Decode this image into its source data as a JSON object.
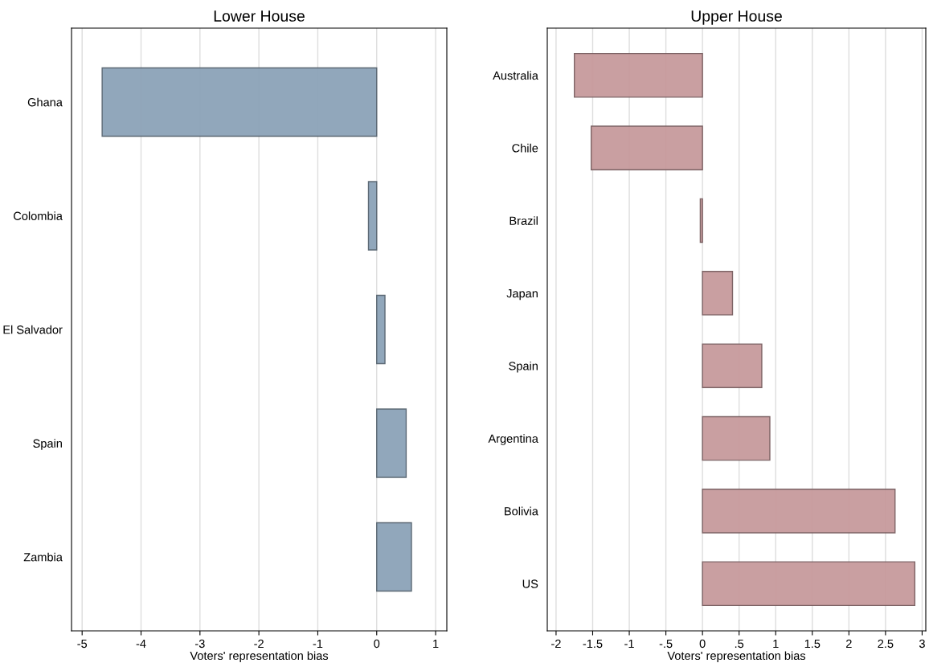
{
  "chart_data": [
    {
      "type": "bar",
      "orientation": "horizontal",
      "title": "Lower House",
      "xlabel": "Voters' representation bias",
      "categories": [
        "Ghana",
        "Colombia",
        "El Salvador",
        "Spain",
        "Zambia"
      ],
      "series": [
        {
          "color": "#8ca3b8",
          "values": [
            -4.66,
            -0.14,
            0.14,
            0.5,
            0.59
          ]
        }
      ],
      "xlim": [
        -5.18,
        1.19
      ],
      "xticks": [
        -5,
        -4,
        -3,
        -2,
        -1,
        0,
        1
      ],
      "grid": "x"
    },
    {
      "type": "bar",
      "orientation": "horizontal",
      "title": "Upper House",
      "xlabel": "Voters' representation bias",
      "categories": [
        "Australia",
        "Chile",
        "Brazil",
        "Japan",
        "Spain",
        "Argentina",
        "Bolivia",
        "US"
      ],
      "series": [
        {
          "color": "#c79a9c",
          "values": [
            -1.75,
            -1.52,
            -0.03,
            0.41,
            0.81,
            0.92,
            2.63,
            2.9
          ]
        }
      ],
      "xlim": [
        -2.12,
        3.05
      ],
      "xticks": [
        -2,
        {
          "value": -1.5,
          "label": "-1.5"
        },
        -1,
        {
          "value": -0.5,
          "label": "-.5"
        },
        0,
        {
          "value": 0.5,
          "label": ".5"
        },
        1,
        {
          "value": 1.5,
          "label": "1.5"
        },
        2,
        {
          "value": 2.5,
          "label": "2.5"
        },
        3
      ],
      "grid": "x"
    }
  ]
}
